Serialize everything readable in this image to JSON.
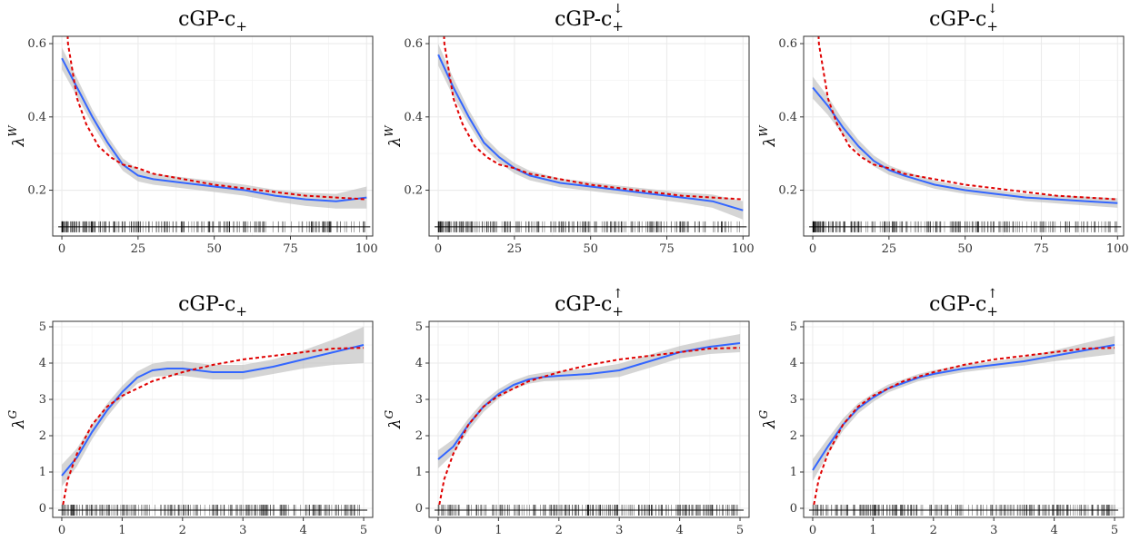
{
  "colors": {
    "smooth_line": "#3366FF",
    "fitted_curve": "#E00000",
    "ribbon": "#BEBEBE",
    "rug": "#000000",
    "grid": "#EBEBEB",
    "panel_border": "#333333"
  },
  "chart_data": [
    {
      "type": "line",
      "title": "cGP-c",
      "title_sub": "+",
      "title_sup": "",
      "ylabel": "λ",
      "ylabel_sup": "W",
      "xlim": [
        -3,
        102
      ],
      "ylim": [
        0.075,
        0.62
      ],
      "xticks": [
        0,
        25,
        50,
        75,
        100
      ],
      "xtick_labels": [
        "0",
        "25",
        "50",
        "75",
        "100"
      ],
      "yticks": [
        0.2,
        0.4,
        0.6
      ],
      "ytick_labels": [
        "0.2",
        "0.4",
        "0.6"
      ],
      "grid": true,
      "rug_y": 0.1,
      "rug_range": [
        0,
        100
      ],
      "series": [
        {
          "style": "smooth",
          "x": [
            0,
            5,
            10,
            15,
            20,
            25,
            30,
            40,
            50,
            60,
            70,
            80,
            90,
            100
          ],
          "y": [
            0.56,
            0.48,
            0.4,
            0.33,
            0.27,
            0.24,
            0.23,
            0.22,
            0.21,
            0.2,
            0.185,
            0.175,
            0.17,
            0.18
          ],
          "band": [
            0.03,
            0.025,
            0.02,
            0.018,
            0.017,
            0.016,
            0.015,
            0.015,
            0.015,
            0.015,
            0.016,
            0.018,
            0.02,
            0.03
          ]
        },
        {
          "style": "fitted",
          "x": [
            0.5,
            2,
            5,
            8,
            12,
            16,
            20,
            25,
            30,
            40,
            50,
            60,
            70,
            80,
            90,
            100
          ],
          "y": [
            0.9,
            0.6,
            0.45,
            0.38,
            0.32,
            0.29,
            0.27,
            0.26,
            0.245,
            0.23,
            0.215,
            0.205,
            0.195,
            0.185,
            0.18,
            0.175
          ]
        }
      ]
    },
    {
      "type": "line",
      "title": "cGP-c",
      "title_sub": "+",
      "title_sup": "↓",
      "ylabel": "λ",
      "ylabel_sup": "W",
      "xlim": [
        -3,
        102
      ],
      "ylim": [
        0.075,
        0.62
      ],
      "xticks": [
        0,
        25,
        50,
        75,
        100
      ],
      "xtick_labels": [
        "0",
        "25",
        "50",
        "75",
        "100"
      ],
      "yticks": [
        0.2,
        0.4,
        0.6
      ],
      "ytick_labels": [
        "0.2",
        "0.4",
        "0.6"
      ],
      "grid": true,
      "rug_y": 0.1,
      "rug_range": [
        0,
        100
      ],
      "series": [
        {
          "style": "smooth",
          "x": [
            0,
            5,
            10,
            15,
            20,
            25,
            30,
            40,
            50,
            60,
            70,
            80,
            90,
            100
          ],
          "y": [
            0.57,
            0.48,
            0.4,
            0.33,
            0.29,
            0.26,
            0.24,
            0.22,
            0.21,
            0.2,
            0.19,
            0.18,
            0.17,
            0.145
          ],
          "band": [
            0.03,
            0.025,
            0.02,
            0.017,
            0.015,
            0.014,
            0.013,
            0.012,
            0.012,
            0.012,
            0.013,
            0.014,
            0.018,
            0.025
          ]
        },
        {
          "style": "fitted",
          "x": [
            0.5,
            2,
            5,
            8,
            12,
            16,
            20,
            25,
            30,
            40,
            50,
            60,
            70,
            80,
            90,
            100
          ],
          "y": [
            0.9,
            0.6,
            0.45,
            0.38,
            0.32,
            0.29,
            0.27,
            0.26,
            0.245,
            0.23,
            0.215,
            0.205,
            0.195,
            0.185,
            0.18,
            0.175
          ]
        }
      ]
    },
    {
      "type": "line",
      "title": "cGP-c",
      "title_sub": "+",
      "title_sup": "↓",
      "ylabel": "λ",
      "ylabel_sup": "W",
      "xlim": [
        -3,
        102
      ],
      "ylim": [
        0.075,
        0.62
      ],
      "xticks": [
        0,
        25,
        50,
        75,
        100
      ],
      "xtick_labels": [
        "0",
        "25",
        "50",
        "75",
        "100"
      ],
      "yticks": [
        0.2,
        0.4,
        0.6
      ],
      "ytick_labels": [
        "0.2",
        "0.4",
        "0.6"
      ],
      "grid": true,
      "rug_y": 0.1,
      "rug_range": [
        0,
        100
      ],
      "series": [
        {
          "style": "smooth",
          "x": [
            0,
            5,
            10,
            15,
            20,
            25,
            30,
            40,
            50,
            60,
            70,
            80,
            90,
            100
          ],
          "y": [
            0.48,
            0.43,
            0.37,
            0.32,
            0.28,
            0.255,
            0.24,
            0.215,
            0.2,
            0.19,
            0.18,
            0.175,
            0.17,
            0.165
          ],
          "band": [
            0.03,
            0.025,
            0.02,
            0.017,
            0.015,
            0.013,
            0.012,
            0.011,
            0.01,
            0.01,
            0.01,
            0.011,
            0.012,
            0.013
          ]
        },
        {
          "style": "fitted",
          "x": [
            0.5,
            2,
            5,
            8,
            12,
            16,
            20,
            25,
            30,
            40,
            50,
            60,
            70,
            80,
            90,
            100
          ],
          "y": [
            0.9,
            0.6,
            0.45,
            0.38,
            0.32,
            0.29,
            0.27,
            0.26,
            0.245,
            0.23,
            0.215,
            0.205,
            0.195,
            0.185,
            0.18,
            0.175
          ]
        }
      ]
    },
    {
      "type": "line",
      "title": "cGP-c",
      "title_sub": "+",
      "title_sup": "",
      "ylabel": "λ",
      "ylabel_sup": "G",
      "xlim": [
        -0.15,
        5.15
      ],
      "ylim": [
        -0.25,
        5.15
      ],
      "xticks": [
        0,
        1,
        2,
        3,
        4,
        5
      ],
      "xtick_labels": [
        "0",
        "1",
        "2",
        "3",
        "4",
        "5"
      ],
      "yticks": [
        0,
        1,
        2,
        3,
        4,
        5
      ],
      "ytick_labels": [
        "0",
        "1",
        "2",
        "3",
        "4",
        "5"
      ],
      "grid": true,
      "rug_y": -0.05,
      "rug_range": [
        0,
        5
      ],
      "series": [
        {
          "style": "smooth",
          "x": [
            0,
            0.25,
            0.5,
            0.75,
            1,
            1.25,
            1.5,
            1.75,
            2,
            2.5,
            3,
            3.5,
            4,
            4.5,
            5
          ],
          "y": [
            0.9,
            1.4,
            2.1,
            2.7,
            3.2,
            3.6,
            3.8,
            3.85,
            3.85,
            3.75,
            3.75,
            3.9,
            4.1,
            4.3,
            4.5
          ],
          "band": [
            0.3,
            0.25,
            0.2,
            0.18,
            0.17,
            0.17,
            0.18,
            0.2,
            0.2,
            0.2,
            0.2,
            0.2,
            0.25,
            0.35,
            0.5
          ]
        },
        {
          "style": "fitted",
          "x": [
            0.02,
            0.1,
            0.25,
            0.5,
            0.75,
            1,
            1.5,
            2,
            2.5,
            3,
            3.5,
            4,
            4.5,
            5
          ],
          "y": [
            0.1,
            0.8,
            1.5,
            2.3,
            2.8,
            3.1,
            3.5,
            3.75,
            3.95,
            4.1,
            4.2,
            4.3,
            4.4,
            4.42
          ]
        }
      ]
    },
    {
      "type": "line",
      "title": "cGP-c",
      "title_sub": "+",
      "title_sup": "↑",
      "ylabel": "λ",
      "ylabel_sup": "G",
      "xlim": [
        -0.15,
        5.15
      ],
      "ylim": [
        -0.25,
        5.15
      ],
      "xticks": [
        0,
        1,
        2,
        3,
        4,
        5
      ],
      "xtick_labels": [
        "0",
        "1",
        "2",
        "3",
        "4",
        "5"
      ],
      "yticks": [
        0,
        1,
        2,
        3,
        4,
        5
      ],
      "ytick_labels": [
        "0",
        "1",
        "2",
        "3",
        "4",
        "5"
      ],
      "grid": true,
      "rug_y": -0.05,
      "rug_range": [
        0,
        5
      ],
      "series": [
        {
          "style": "smooth",
          "x": [
            0,
            0.25,
            0.5,
            0.75,
            1,
            1.25,
            1.5,
            1.75,
            2,
            2.5,
            3,
            3.5,
            4,
            4.5,
            5
          ],
          "y": [
            1.35,
            1.7,
            2.3,
            2.8,
            3.15,
            3.4,
            3.55,
            3.62,
            3.65,
            3.7,
            3.8,
            4.05,
            4.3,
            4.45,
            4.55
          ],
          "band": [
            0.25,
            0.2,
            0.17,
            0.15,
            0.13,
            0.12,
            0.12,
            0.12,
            0.13,
            0.15,
            0.18,
            0.18,
            0.17,
            0.2,
            0.25
          ]
        },
        {
          "style": "fitted",
          "x": [
            0.02,
            0.1,
            0.25,
            0.5,
            0.75,
            1,
            1.5,
            2,
            2.5,
            3,
            3.5,
            4,
            4.5,
            5
          ],
          "y": [
            0.1,
            0.8,
            1.5,
            2.3,
            2.8,
            3.1,
            3.5,
            3.75,
            3.95,
            4.1,
            4.2,
            4.3,
            4.4,
            4.42
          ]
        }
      ]
    },
    {
      "type": "line",
      "title": "cGP-c",
      "title_sub": "+",
      "title_sup": "↑",
      "ylabel": "λ",
      "ylabel_sup": "G",
      "xlim": [
        -0.15,
        5.15
      ],
      "ylim": [
        -0.25,
        5.15
      ],
      "xticks": [
        0,
        1,
        2,
        3,
        4,
        5
      ],
      "xtick_labels": [
        "0",
        "1",
        "2",
        "3",
        "4",
        "5"
      ],
      "yticks": [
        0,
        1,
        2,
        3,
        4,
        5
      ],
      "ytick_labels": [
        "0",
        "1",
        "2",
        "3",
        "4",
        "5"
      ],
      "grid": true,
      "rug_y": -0.05,
      "rug_range": [
        0,
        5
      ],
      "series": [
        {
          "style": "smooth",
          "x": [
            0,
            0.25,
            0.5,
            0.75,
            1,
            1.25,
            1.5,
            1.75,
            2,
            2.5,
            3,
            3.5,
            4,
            4.5,
            5
          ],
          "y": [
            1.05,
            1.7,
            2.3,
            2.75,
            3.05,
            3.3,
            3.45,
            3.6,
            3.7,
            3.85,
            3.95,
            4.05,
            4.2,
            4.35,
            4.5
          ],
          "band": [
            0.3,
            0.22,
            0.17,
            0.14,
            0.12,
            0.11,
            0.1,
            0.1,
            0.1,
            0.1,
            0.1,
            0.12,
            0.15,
            0.2,
            0.25
          ]
        },
        {
          "style": "fitted",
          "x": [
            0.02,
            0.1,
            0.25,
            0.5,
            0.75,
            1,
            1.5,
            2,
            2.5,
            3,
            3.5,
            4,
            4.5,
            5
          ],
          "y": [
            0.1,
            0.8,
            1.5,
            2.3,
            2.8,
            3.1,
            3.5,
            3.75,
            3.95,
            4.1,
            4.2,
            4.3,
            4.4,
            4.42
          ]
        }
      ]
    }
  ]
}
